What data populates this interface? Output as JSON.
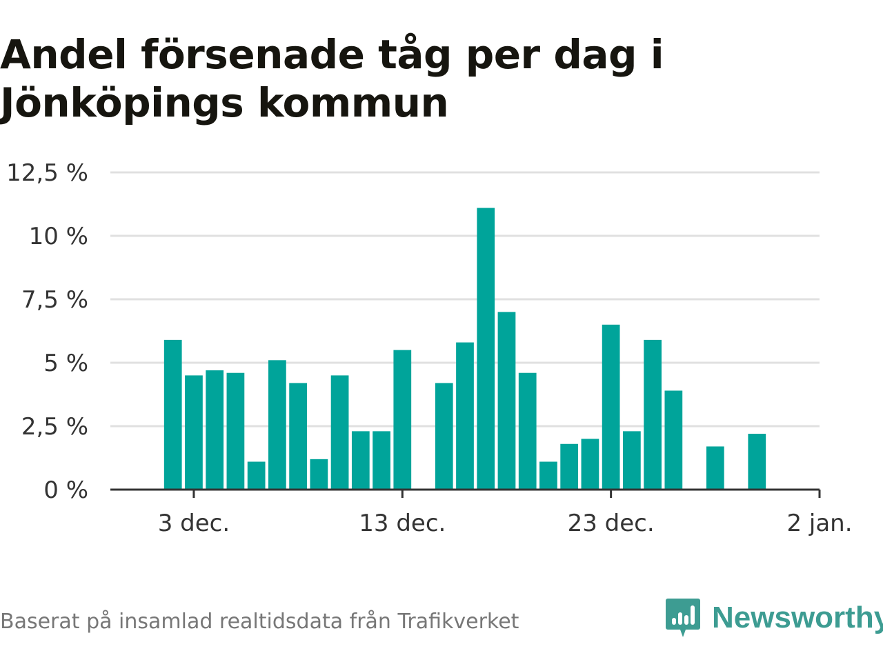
{
  "title": "Andel försenade tåg per dag i Jönköpings kommun",
  "source": "Baserat på insamlad realtidsdata från Trafikverket",
  "brand": "Newsworthy",
  "colors": {
    "bar": "#00a49a",
    "grid": "#e0e0e0",
    "axis": "#333333",
    "brand": "#3d9c92"
  },
  "chart_data": {
    "type": "bar",
    "title": "Andel försenade tåg per dag i Jönköpings kommun",
    "xlabel": "",
    "ylabel": "",
    "ylim": [
      0,
      12.5
    ],
    "yticks": [
      0,
      2.5,
      5,
      7.5,
      10,
      12.5
    ],
    "ytick_labels": [
      "0 %",
      "2,5 %",
      "5 %",
      "7,5 %",
      "10 %",
      "12,5 %"
    ],
    "xlim": [
      "2020-11-29",
      "2021-01-02"
    ],
    "xticks": [
      "2020-12-03",
      "2020-12-13",
      "2020-12-23",
      "2021-01-02"
    ],
    "xtick_labels": [
      "3 dec.",
      "13 dec.",
      "23 dec.",
      "2 jan."
    ],
    "grid": true,
    "series": [
      {
        "dates": [
          "2020-12-02",
          "2020-12-03",
          "2020-12-04",
          "2020-12-05",
          "2020-12-06",
          "2020-12-07",
          "2020-12-08",
          "2020-12-09",
          "2020-12-10",
          "2020-12-11",
          "2020-12-12",
          "2020-12-13",
          "2020-12-14",
          "2020-12-15",
          "2020-12-16",
          "2020-12-17",
          "2020-12-18",
          "2020-12-19",
          "2020-12-20",
          "2020-12-21",
          "2020-12-22",
          "2020-12-23",
          "2020-12-24",
          "2020-12-25",
          "2020-12-26",
          "2020-12-27",
          "2020-12-28",
          "2020-12-29",
          "2020-12-30",
          "2020-12-31"
        ],
        "values": [
          5.9,
          4.5,
          4.7,
          4.6,
          1.1,
          5.1,
          4.2,
          1.2,
          4.5,
          2.3,
          2.3,
          5.5,
          null,
          4.2,
          5.8,
          11.1,
          7.0,
          4.6,
          1.1,
          1.8,
          2.0,
          6.5,
          2.3,
          5.9,
          3.9,
          null,
          1.7,
          null,
          2.2,
          null
        ]
      }
    ]
  }
}
